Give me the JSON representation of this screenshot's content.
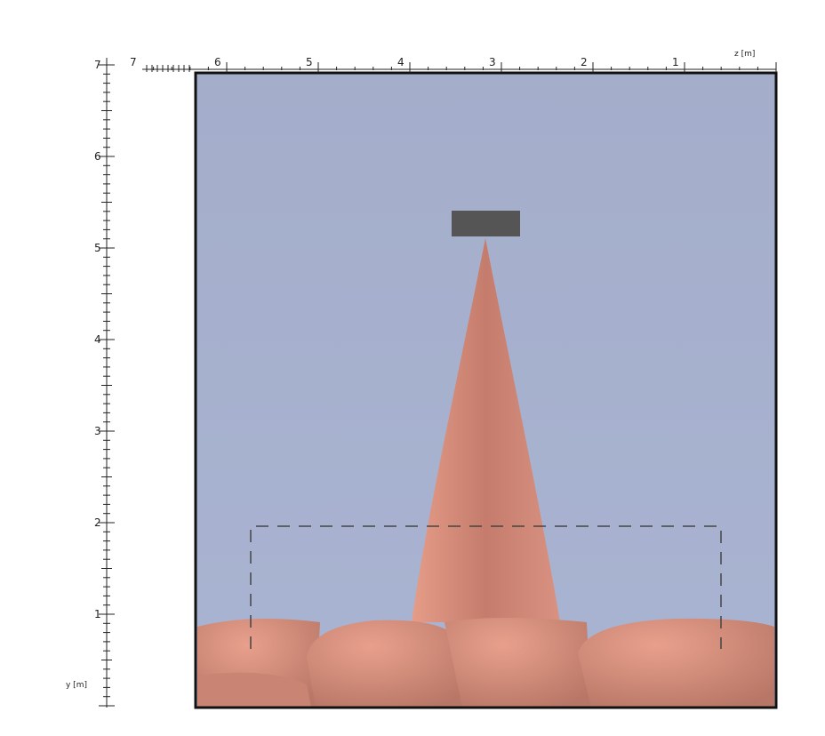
{
  "y_ruler": {
    "labels": [
      "7",
      "6",
      "5",
      "4",
      "3",
      "2",
      "1"
    ],
    "unit": "y [m]"
  },
  "z_ruler": {
    "labels": [
      "7",
      "6",
      "5",
      "4",
      "3",
      "2",
      "1"
    ],
    "unit": "z [m]"
  }
}
